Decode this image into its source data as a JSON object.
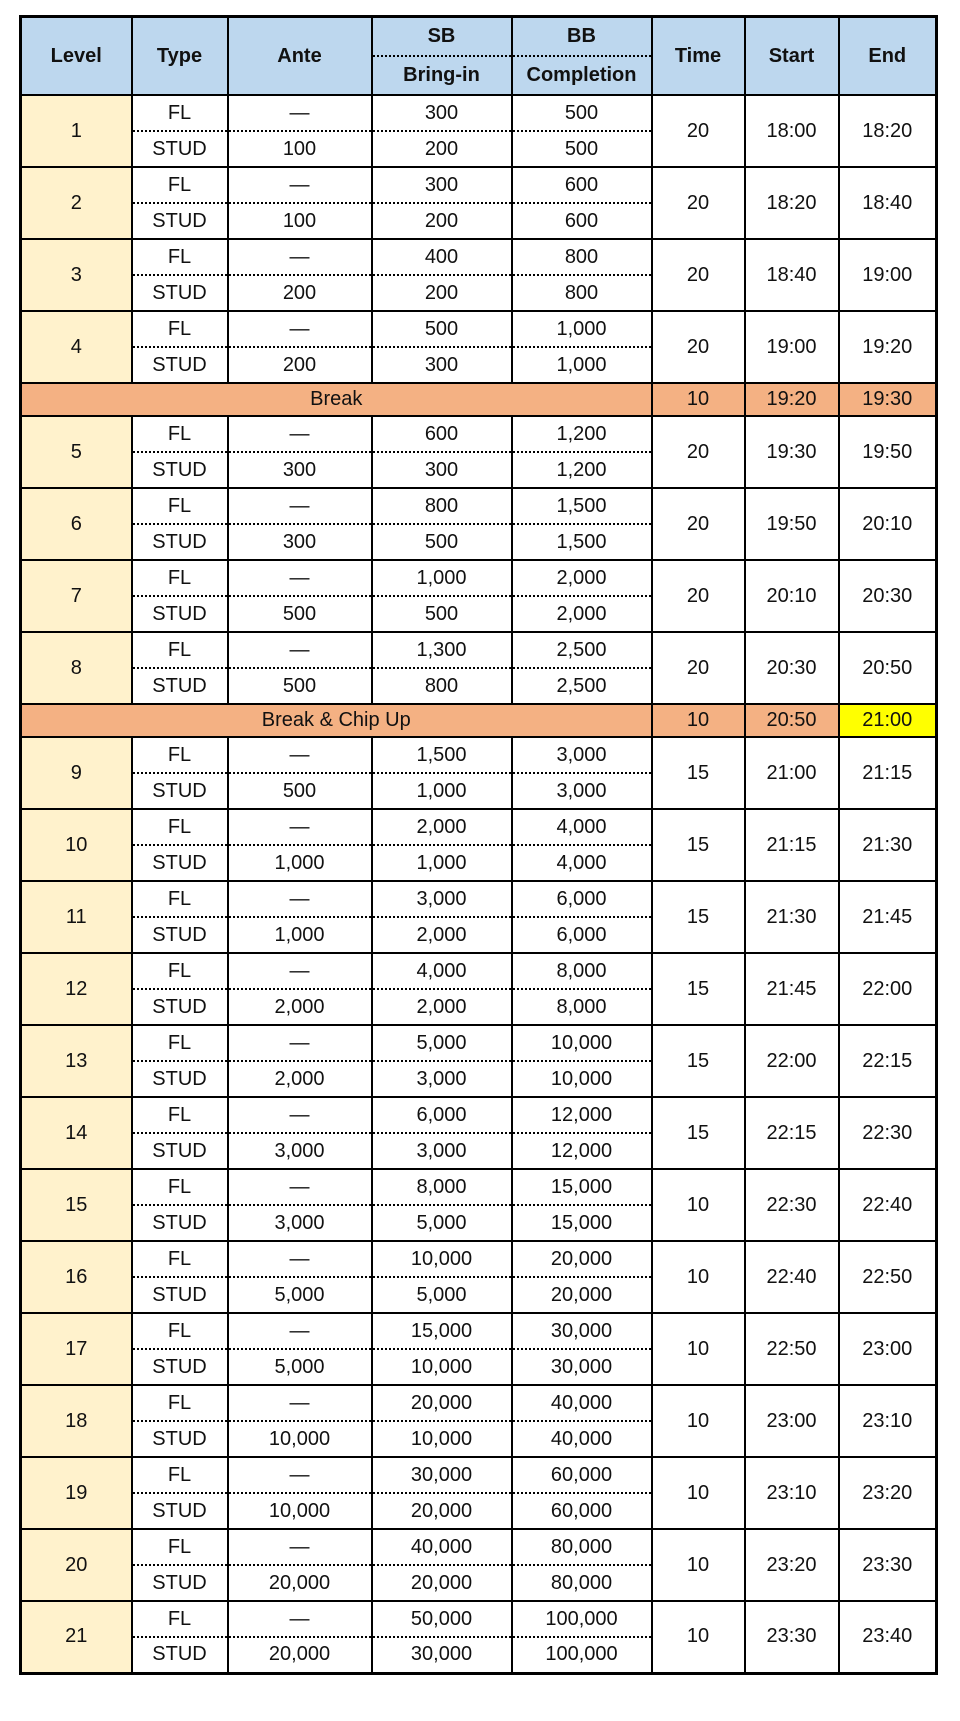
{
  "colors": {
    "header_bg": "#BDD7EE",
    "level_bg": "#FFF2CC",
    "break_bg": "#F4B183",
    "highlight_bg": "#FFFF00",
    "border": "#000000"
  },
  "table": {
    "header": {
      "level": "Level",
      "type": "Type",
      "ante": "Ante",
      "sb": "SB",
      "bring_in": "Bring-in",
      "bb": "BB",
      "completion": "Completion",
      "time": "Time",
      "start": "Start",
      "end": "End"
    }
  },
  "schedule": [
    {
      "kind": "level",
      "level": "1",
      "rows": [
        {
          "type": "FL",
          "ante": "—",
          "sb": "300",
          "bb": "500"
        },
        {
          "type": "STUD",
          "ante": "100",
          "sb": "200",
          "bb": "500"
        }
      ],
      "time": "20",
      "start": "18:00",
      "end": "18:20"
    },
    {
      "kind": "level",
      "level": "2",
      "rows": [
        {
          "type": "FL",
          "ante": "—",
          "sb": "300",
          "bb": "600"
        },
        {
          "type": "STUD",
          "ante": "100",
          "sb": "200",
          "bb": "600"
        }
      ],
      "time": "20",
      "start": "18:20",
      "end": "18:40"
    },
    {
      "kind": "level",
      "level": "3",
      "rows": [
        {
          "type": "FL",
          "ante": "—",
          "sb": "400",
          "bb": "800"
        },
        {
          "type": "STUD",
          "ante": "200",
          "sb": "200",
          "bb": "800"
        }
      ],
      "time": "20",
      "start": "18:40",
      "end": "19:00"
    },
    {
      "kind": "level",
      "level": "4",
      "rows": [
        {
          "type": "FL",
          "ante": "—",
          "sb": "500",
          "bb": "1,000"
        },
        {
          "type": "STUD",
          "ante": "200",
          "sb": "300",
          "bb": "1,000"
        }
      ],
      "time": "20",
      "start": "19:00",
      "end": "19:20"
    },
    {
      "kind": "break",
      "label": "Break",
      "time": "10",
      "start": "19:20",
      "end": "19:30",
      "highlight_end": false
    },
    {
      "kind": "level",
      "level": "5",
      "rows": [
        {
          "type": "FL",
          "ante": "—",
          "sb": "600",
          "bb": "1,200"
        },
        {
          "type": "STUD",
          "ante": "300",
          "sb": "300",
          "bb": "1,200"
        }
      ],
      "time": "20",
      "start": "19:30",
      "end": "19:50"
    },
    {
      "kind": "level",
      "level": "6",
      "rows": [
        {
          "type": "FL",
          "ante": "—",
          "sb": "800",
          "bb": "1,500"
        },
        {
          "type": "STUD",
          "ante": "300",
          "sb": "500",
          "bb": "1,500"
        }
      ],
      "time": "20",
      "start": "19:50",
      "end": "20:10"
    },
    {
      "kind": "level",
      "level": "7",
      "rows": [
        {
          "type": "FL",
          "ante": "—",
          "sb": "1,000",
          "bb": "2,000"
        },
        {
          "type": "STUD",
          "ante": "500",
          "sb": "500",
          "bb": "2,000"
        }
      ],
      "time": "20",
      "start": "20:10",
      "end": "20:30"
    },
    {
      "kind": "level",
      "level": "8",
      "rows": [
        {
          "type": "FL",
          "ante": "—",
          "sb": "1,300",
          "bb": "2,500"
        },
        {
          "type": "STUD",
          "ante": "500",
          "sb": "800",
          "bb": "2,500"
        }
      ],
      "time": "20",
      "start": "20:30",
      "end": "20:50"
    },
    {
      "kind": "break",
      "label": "Break & Chip Up",
      "time": "10",
      "start": "20:50",
      "end": "21:00",
      "highlight_end": true
    },
    {
      "kind": "level",
      "level": "9",
      "rows": [
        {
          "type": "FL",
          "ante": "—",
          "sb": "1,500",
          "bb": "3,000"
        },
        {
          "type": "STUD",
          "ante": "500",
          "sb": "1,000",
          "bb": "3,000"
        }
      ],
      "time": "15",
      "start": "21:00",
      "end": "21:15"
    },
    {
      "kind": "level",
      "level": "10",
      "rows": [
        {
          "type": "FL",
          "ante": "—",
          "sb": "2,000",
          "bb": "4,000"
        },
        {
          "type": "STUD",
          "ante": "1,000",
          "sb": "1,000",
          "bb": "4,000"
        }
      ],
      "time": "15",
      "start": "21:15",
      "end": "21:30"
    },
    {
      "kind": "level",
      "level": "11",
      "rows": [
        {
          "type": "FL",
          "ante": "—",
          "sb": "3,000",
          "bb": "6,000"
        },
        {
          "type": "STUD",
          "ante": "1,000",
          "sb": "2,000",
          "bb": "6,000"
        }
      ],
      "time": "15",
      "start": "21:30",
      "end": "21:45"
    },
    {
      "kind": "level",
      "level": "12",
      "rows": [
        {
          "type": "FL",
          "ante": "—",
          "sb": "4,000",
          "bb": "8,000"
        },
        {
          "type": "STUD",
          "ante": "2,000",
          "sb": "2,000",
          "bb": "8,000"
        }
      ],
      "time": "15",
      "start": "21:45",
      "end": "22:00"
    },
    {
      "kind": "level",
      "level": "13",
      "rows": [
        {
          "type": "FL",
          "ante": "—",
          "sb": "5,000",
          "bb": "10,000"
        },
        {
          "type": "STUD",
          "ante": "2,000",
          "sb": "3,000",
          "bb": "10,000"
        }
      ],
      "time": "15",
      "start": "22:00",
      "end": "22:15"
    },
    {
      "kind": "level",
      "level": "14",
      "rows": [
        {
          "type": "FL",
          "ante": "—",
          "sb": "6,000",
          "bb": "12,000"
        },
        {
          "type": "STUD",
          "ante": "3,000",
          "sb": "3,000",
          "bb": "12,000"
        }
      ],
      "time": "15",
      "start": "22:15",
      "end": "22:30"
    },
    {
      "kind": "level",
      "level": "15",
      "rows": [
        {
          "type": "FL",
          "ante": "—",
          "sb": "8,000",
          "bb": "15,000"
        },
        {
          "type": "STUD",
          "ante": "3,000",
          "sb": "5,000",
          "bb": "15,000"
        }
      ],
      "time": "10",
      "start": "22:30",
      "end": "22:40"
    },
    {
      "kind": "level",
      "level": "16",
      "rows": [
        {
          "type": "FL",
          "ante": "—",
          "sb": "10,000",
          "bb": "20,000"
        },
        {
          "type": "STUD",
          "ante": "5,000",
          "sb": "5,000",
          "bb": "20,000"
        }
      ],
      "time": "10",
      "start": "22:40",
      "end": "22:50"
    },
    {
      "kind": "level",
      "level": "17",
      "rows": [
        {
          "type": "FL",
          "ante": "—",
          "sb": "15,000",
          "bb": "30,000"
        },
        {
          "type": "STUD",
          "ante": "5,000",
          "sb": "10,000",
          "bb": "30,000"
        }
      ],
      "time": "10",
      "start": "22:50",
      "end": "23:00"
    },
    {
      "kind": "level",
      "level": "18",
      "rows": [
        {
          "type": "FL",
          "ante": "—",
          "sb": "20,000",
          "bb": "40,000"
        },
        {
          "type": "STUD",
          "ante": "10,000",
          "sb": "10,000",
          "bb": "40,000"
        }
      ],
      "time": "10",
      "start": "23:00",
      "end": "23:10"
    },
    {
      "kind": "level",
      "level": "19",
      "rows": [
        {
          "type": "FL",
          "ante": "—",
          "sb": "30,000",
          "bb": "60,000"
        },
        {
          "type": "STUD",
          "ante": "10,000",
          "sb": "20,000",
          "bb": "60,000"
        }
      ],
      "time": "10",
      "start": "23:10",
      "end": "23:20"
    },
    {
      "kind": "level",
      "level": "20",
      "rows": [
        {
          "type": "FL",
          "ante": "—",
          "sb": "40,000",
          "bb": "80,000"
        },
        {
          "type": "STUD",
          "ante": "20,000",
          "sb": "20,000",
          "bb": "80,000"
        }
      ],
      "time": "10",
      "start": "23:20",
      "end": "23:30"
    },
    {
      "kind": "level",
      "level": "21",
      "rows": [
        {
          "type": "FL",
          "ante": "—",
          "sb": "50,000",
          "bb": "100,000"
        },
        {
          "type": "STUD",
          "ante": "20,000",
          "sb": "30,000",
          "bb": "100,000"
        }
      ],
      "time": "10",
      "start": "23:30",
      "end": "23:40"
    }
  ]
}
